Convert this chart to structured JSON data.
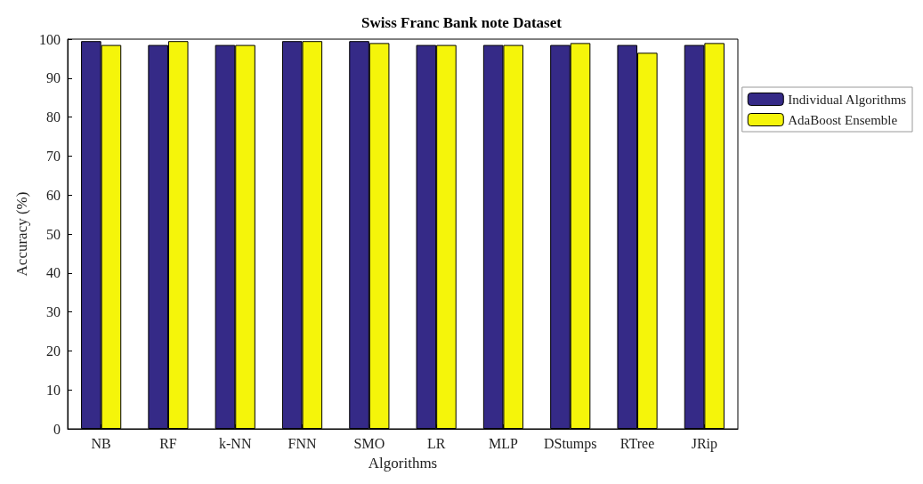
{
  "chart_data": {
    "type": "bar",
    "title": "Swiss Franc Bank note Dataset",
    "xlabel": "Algorithms",
    "ylabel": "Accuracy (%)",
    "categories": [
      "NB",
      "RF",
      "k-NN",
      "FNN",
      "SMO",
      "LR",
      "MLP",
      "DStumps",
      "RTree",
      "JRip"
    ],
    "series": [
      {
        "name": "Individual Algorithms",
        "color": "#352a87",
        "values": [
          99.5,
          98.5,
          98.5,
          99.5,
          99.5,
          98.5,
          98.5,
          98.5,
          98.5,
          98.5
        ]
      },
      {
        "name": "AdaBoost Ensemble",
        "color": "#f5f50a",
        "values": [
          98.5,
          99.5,
          98.5,
          99.5,
          99,
          98.5,
          98.5,
          99,
          96.5,
          99
        ]
      }
    ],
    "ylim": [
      0,
      100
    ],
    "yticks": [
      0,
      10,
      20,
      30,
      40,
      50,
      60,
      70,
      80,
      90,
      100
    ],
    "grid": false,
    "legend": "right"
  }
}
